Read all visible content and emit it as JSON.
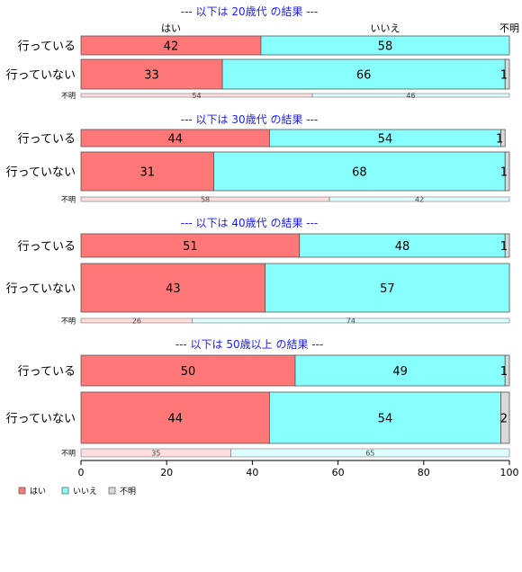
{
  "chart_data": {
    "type": "bar",
    "stacked": true,
    "orientation": "horizontal",
    "xlim": [
      0,
      100
    ],
    "x_ticks": [
      "0",
      "20",
      "40",
      "60",
      "80",
      "100"
    ],
    "grid": false,
    "top_category_labels": [
      "はい",
      "いいえ",
      "不明"
    ],
    "legend": {
      "position": "bottom-left",
      "items": [
        {
          "label": "はい",
          "color": "#ff7777"
        },
        {
          "label": "いいえ",
          "color": "#88ffff"
        },
        {
          "label": "不明",
          "color": "#d9d9d9"
        }
      ]
    },
    "panels": [
      {
        "title": "--- 以下は 20歳代 の結果 ---",
        "rows": [
          {
            "label": "行っている",
            "series": [
              {
                "name": "はい",
                "value": 42
              },
              {
                "name": "いいえ",
                "value": 58
              },
              {
                "name": "不明",
                "value": 0
              }
            ]
          },
          {
            "label": "行っていない",
            "series": [
              {
                "name": "はい",
                "value": 33
              },
              {
                "name": "いいえ",
                "value": 66
              },
              {
                "name": "不明",
                "value": 1
              }
            ]
          }
        ],
        "share_label": "不明",
        "share": [
          {
            "value": 54,
            "color": "#ffdddd"
          },
          {
            "value": 46,
            "color": "#ddffff"
          }
        ]
      },
      {
        "title": "--- 以下は 30歳代 の結果 ---",
        "rows": [
          {
            "label": "行っている",
            "series": [
              {
                "name": "はい",
                "value": 44
              },
              {
                "name": "いいえ",
                "value": 54
              },
              {
                "name": "不明",
                "value": 1
              }
            ]
          },
          {
            "label": "行っていない",
            "series": [
              {
                "name": "はい",
                "value": 31
              },
              {
                "name": "いいえ",
                "value": 68
              },
              {
                "name": "不明",
                "value": 1
              }
            ]
          }
        ],
        "share_label": "不明",
        "share": [
          {
            "value": 58,
            "color": "#ffdddd"
          },
          {
            "value": 42,
            "color": "#ddffff"
          }
        ]
      },
      {
        "title": "--- 以下は 40歳代 の結果 ---",
        "rows": [
          {
            "label": "行っている",
            "series": [
              {
                "name": "はい",
                "value": 51
              },
              {
                "name": "いいえ",
                "value": 48
              },
              {
                "name": "不明",
                "value": 1
              }
            ]
          },
          {
            "label": "行っていない",
            "series": [
              {
                "name": "はい",
                "value": 43
              },
              {
                "name": "いいえ",
                "value": 57
              },
              {
                "name": "不明",
                "value": 0
              }
            ]
          }
        ],
        "share_label": "不明",
        "share": [
          {
            "value": 26,
            "color": "#ffdddd"
          },
          {
            "value": 74,
            "color": "#ddffff"
          }
        ]
      },
      {
        "title": "--- 以下は 50歳以上 の結果 ---",
        "rows": [
          {
            "label": "行っている",
            "series": [
              {
                "name": "はい",
                "value": 50
              },
              {
                "name": "いいえ",
                "value": 49
              },
              {
                "name": "不明",
                "value": 1
              }
            ]
          },
          {
            "label": "行っていない",
            "series": [
              {
                "name": "はい",
                "value": 44
              },
              {
                "name": "いいえ",
                "value": 54
              },
              {
                "name": "不明",
                "value": 2
              }
            ]
          }
        ],
        "share_label": "不明",
        "share": [
          {
            "value": 35,
            "color": "#ffdddd"
          },
          {
            "value": 65,
            "color": "#ddffff"
          }
        ]
      }
    ]
  }
}
